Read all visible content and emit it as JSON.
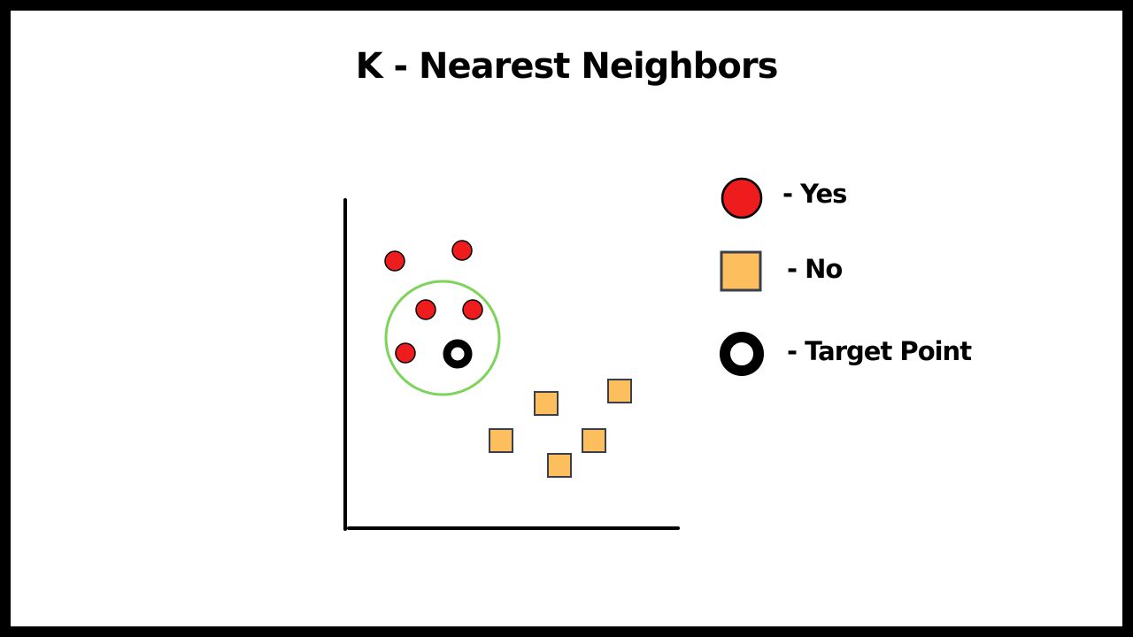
{
  "title": "K - Nearest Neighbors",
  "colors": {
    "yes_fill": "#ee1c1c",
    "no_fill": "#fdbf5e",
    "no_stroke": "#3b3f4c",
    "neighborhood": "#7ed35a",
    "axis": "#000000",
    "target": "#000000"
  },
  "legend": {
    "yes_label": "- Yes",
    "no_label": "- No",
    "target_label": "- Target Point"
  }
}
